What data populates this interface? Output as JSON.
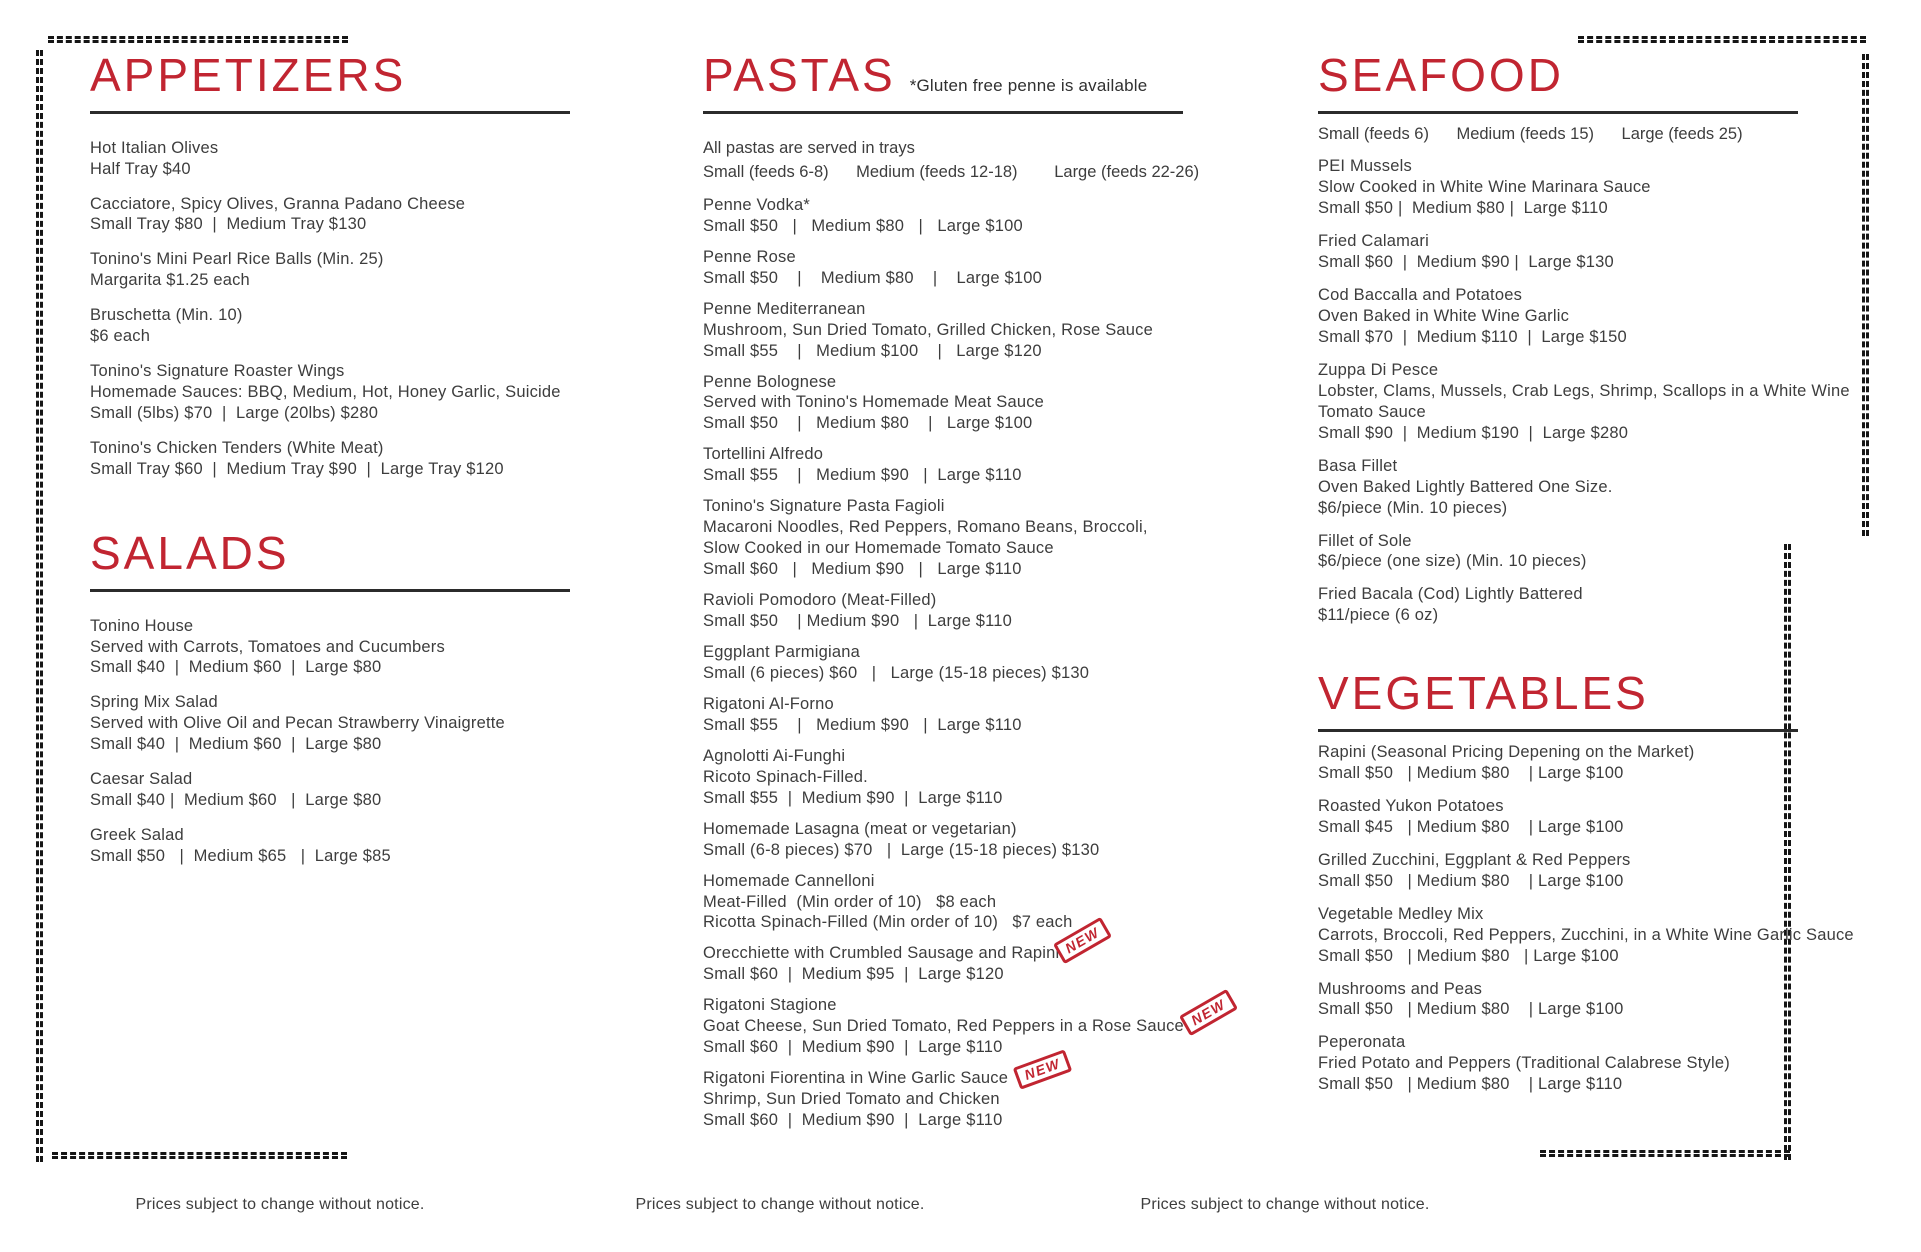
{
  "page": {
    "accent": "#c12531",
    "ink": "#3d3d3d",
    "footer": "Prices subject to change without notice."
  },
  "stamp_label": "NEW",
  "columns": [
    {
      "name": "left",
      "sections": [
        {
          "id": "appetizers",
          "title": "APPETIZERS",
          "title_note": null,
          "gap": null,
          "intro_lines": [],
          "items": [
            {
              "lines": [
                "Hot Italian Olives",
                "Half Tray $40"
              ]
            },
            {
              "lines": [
                "Cacciatore, Spicy Olives, Granna Padano Cheese",
                "Small Tray $80  |  Medium Tray $130"
              ]
            },
            {
              "lines": [
                "Tonino's Mini Pearl Rice Balls (Min. 25)",
                "Margarita $1.25 each"
              ]
            },
            {
              "lines": [
                "Bruschetta (Min. 10)",
                "$6 each"
              ]
            },
            {
              "lines": [
                "Tonino's Signature Roaster Wings",
                "Homemade Sauces: BBQ, Medium, Hot, Honey Garlic, Suicide",
                "Small (5lbs) $70  |  Large (20lbs) $280"
              ]
            },
            {
              "lines": [
                "Tonino's Chicken Tenders (White Meat)",
                "Small Tray $60  |  Medium Tray $90  |  Large Tray $120"
              ]
            }
          ]
        },
        {
          "id": "salads",
          "title": "SALADS",
          "title_note": null,
          "gap": "sm",
          "intro_lines": [],
          "items": [
            {
              "lines": [
                "Tonino House",
                "Served with Carrots, Tomatoes and Cucumbers",
                "Small $40  |  Medium $60  |  Large $80"
              ]
            },
            {
              "lines": [
                "Spring Mix Salad",
                "Served with Olive Oil and Pecan Strawberry Vinaigrette",
                "Small $40  |  Medium $60  |  Large $80"
              ]
            },
            {
              "lines": [
                "Caesar Salad",
                "Small $40 |  Medium $60   |  Large $80"
              ]
            },
            {
              "lines": [
                "Greek Salad",
                "Small $50   |  Medium $65   |  Large $85"
              ]
            }
          ]
        }
      ]
    },
    {
      "name": "middle",
      "sections": [
        {
          "id": "pastas",
          "title": "PASTAS",
          "title_note": "*Gluten free penne is available",
          "gap": null,
          "intro_lines": [
            "All pastas are served in trays",
            "Small (feeds 6-8)      Medium (feeds 12-18)        Large (feeds 22-26)"
          ],
          "items": [
            {
              "lines": [
                "Penne Vodka*",
                "Small $50   |   Medium $80   |   Large $100"
              ]
            },
            {
              "lines": [
                "Penne Rose",
                "Small $50    |    Medium $80    |    Large $100"
              ]
            },
            {
              "lines": [
                "Penne Mediterranean",
                "Mushroom, Sun Dried Tomato, Grilled Chicken, Rose Sauce",
                "Small $55    |   Medium $100    |   Large $120"
              ]
            },
            {
              "lines": [
                "Penne Bolognese",
                "Served with Tonino's Homemade Meat Sauce",
                "Small $50    |   Medium $80    |   Large $100"
              ]
            },
            {
              "lines": [
                "Tortellini Alfredo",
                "Small $55    |   Medium $90   |  Large $110"
              ]
            },
            {
              "lines": [
                "Tonino's Signature Pasta Fagioli",
                "Macaroni Noodles, Red Peppers, Romano Beans, Broccoli,",
                "Slow Cooked in our Homemade Tomato Sauce",
                "Small $60   |   Medium $90   |   Large $110"
              ]
            },
            {
              "lines": [
                "Ravioli Pomodoro (Meat-Filled)",
                "Small $50    | Medium $90   |  Large $110"
              ]
            },
            {
              "lines": [
                "Eggplant Parmigiana",
                "Small (6 pieces) $60   |   Large (15-18 pieces) $130"
              ]
            },
            {
              "lines": [
                "Rigatoni Al-Forno",
                "Small $55    |   Medium $90   |  Large $110"
              ]
            },
            {
              "lines": [
                "Agnolotti Ai-Funghi",
                "Ricoto Spinach-Filled.",
                "Small $55  |  Medium $90  |  Large $110"
              ]
            },
            {
              "lines": [
                "Homemade Lasagna (meat or vegetarian)",
                "Small (6-8 pieces) $70   |  Large (15-18 pieces) $130"
              ]
            },
            {
              "lines": [
                "Homemade Cannelloni",
                "Meat-Filled  (Min order of 10)   $8 each",
                "Ricotta Spinach-Filled (Min order of 10)   $7 each"
              ]
            },
            {
              "lines": [
                "Orecchiette with Crumbled Sausage and Rapini",
                "Small $60  |  Medium $95  |  Large $120"
              ],
              "stamp": "stamp-1"
            },
            {
              "lines": [
                "Rigatoni Stagione",
                "Goat Cheese, Sun Dried Tomato, Red Peppers in a Rose Sauce",
                "Small $60  |  Medium $90  |  Large $110"
              ],
              "stamp": "stamp-2"
            },
            {
              "lines": [
                "Rigatoni Fiorentina in Wine Garlic Sauce",
                "Shrimp, Sun Dried Tomato and Chicken",
                "Small $60  |  Medium $90  |  Large $110"
              ],
              "stamp": "stamp-3"
            }
          ]
        }
      ]
    },
    {
      "name": "right",
      "sections": [
        {
          "id": "seafood",
          "title": "SEAFOOD",
          "title_note": null,
          "gap": null,
          "intro_lines": [
            "Small (feeds 6)      Medium (feeds 15)      Large (feeds 25)"
          ],
          "items": [
            {
              "lines": [
                "PEI Mussels",
                "Slow Cooked in White Wine Marinara Sauce",
                "Small $50 |  Medium $80 |  Large $110"
              ]
            },
            {
              "lines": [
                "Fried Calamari",
                "Small $60  |  Medium $90 |  Large $130"
              ]
            },
            {
              "lines": [
                "Cod Baccalla and Potatoes",
                "Oven Baked in White Wine Garlic",
                "Small $70  |  Medium $110  |  Large $150"
              ]
            },
            {
              "lines": [
                "Zuppa Di Pesce",
                "Lobster, Clams, Mussels, Crab Legs, Shrimp, Scallops in a White Wine",
                "Tomato Sauce",
                "Small $90  |  Medium $190  |  Large $280"
              ]
            },
            {
              "lines": [
                "Basa Fillet",
                "Oven Baked Lightly Battered One Size.",
                "$6/piece (Min. 10 pieces)"
              ]
            },
            {
              "lines": [
                "Fillet of Sole",
                "$6/piece (one size) (Min. 10 pieces)"
              ]
            },
            {
              "lines": [
                "Fried Bacala (Cod) Lightly Battered",
                "$11/piece (6 oz)"
              ]
            }
          ]
        },
        {
          "id": "vegetables",
          "title": "VEGETABLES",
          "title_note": null,
          "gap": "lg",
          "intro_lines": [],
          "items": [
            {
              "lines": [
                "Rapini (Seasonal Pricing Depening on the Market)",
                "Small $50   | Medium $80    | Large $100"
              ]
            },
            {
              "lines": [
                "Roasted Yukon Potatoes",
                "Small $45   | Medium $80    | Large $100"
              ]
            },
            {
              "lines": [
                "Grilled Zucchini, Eggplant & Red Peppers",
                "Small $50   | Medium $80    | Large $100"
              ]
            },
            {
              "lines": [
                "Vegetable Medley Mix",
                "Carrots, Broccoli, Red Peppers, Zucchini, in a White Wine Garlic Sauce",
                "Small $50   | Medium $80   | Large $100"
              ]
            },
            {
              "lines": [
                "Mushrooms and Peas",
                "Small $50   | Medium $80    | Large $100"
              ]
            },
            {
              "lines": [
                "Peperonata",
                "Fried Potato and Peppers (Traditional Calabrese Style)",
                "Small $50   | Medium $80    | Large $110"
              ]
            }
          ]
        }
      ]
    }
  ]
}
